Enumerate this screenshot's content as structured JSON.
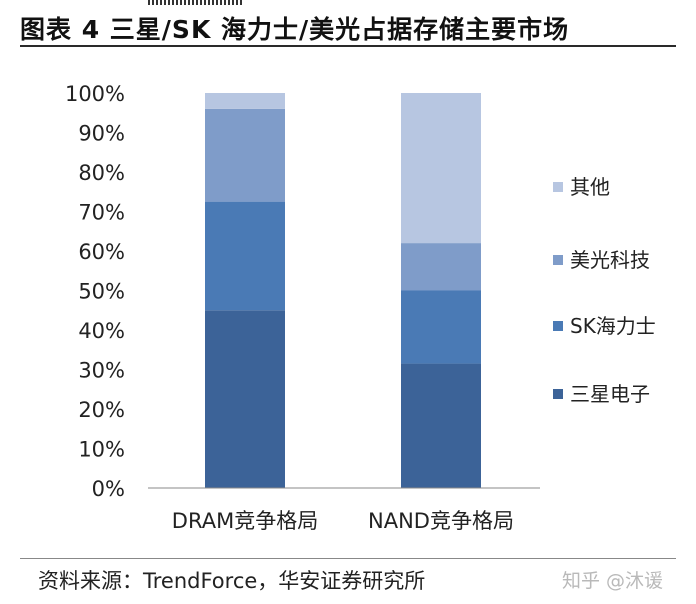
{
  "title": "图表 4 三星/SK 海力士/美光占据存储主要市场",
  "source": "资料来源：TrendForce，华安证券研究所",
  "watermark": "知乎 @沐谖",
  "chart_data": {
    "type": "bar",
    "stacked": true,
    "categories": [
      "DRAM竞争格局",
      "NAND竞争格局"
    ],
    "series": [
      {
        "name": "三星电子",
        "values": [
          45,
          31.5
        ],
        "color": "#3c6398"
      },
      {
        "name": "SK海力士",
        "values": [
          27.5,
          18.5
        ],
        "color": "#4a7ab5"
      },
      {
        "name": "美光科技",
        "values": [
          23.5,
          12
        ],
        "color": "#7f9cc9"
      },
      {
        "name": "其他",
        "values": [
          4,
          38
        ],
        "color": "#b7c6e1"
      }
    ],
    "yticks": [
      "0%",
      "10%",
      "20%",
      "30%",
      "40%",
      "50%",
      "60%",
      "70%",
      "80%",
      "90%",
      "100%"
    ],
    "ylim": [
      0,
      100
    ],
    "legend_position": "right",
    "legend_order": [
      "其他",
      "美光科技",
      "SK海力士",
      "三星电子"
    ],
    "grid": false
  }
}
